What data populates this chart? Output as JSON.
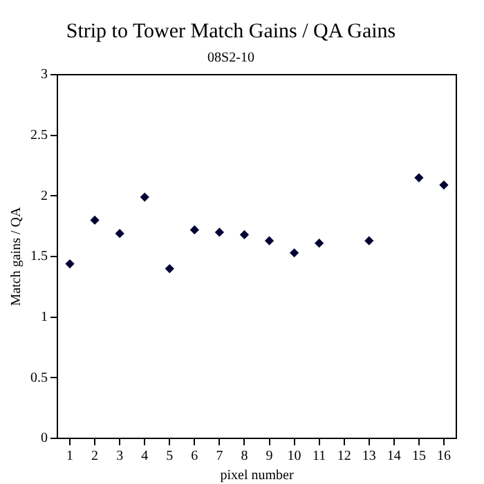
{
  "chart_data": {
    "type": "scatter",
    "title": "Strip to Tower Match Gains / QA Gains",
    "subtitle": "08S2-10",
    "xlabel": "pixel number",
    "ylabel": "Match gains / QA",
    "x": [
      1,
      2,
      3,
      4,
      5,
      6,
      7,
      8,
      9,
      10,
      11,
      13,
      15,
      16
    ],
    "series": [
      {
        "color": "#000033",
        "values": [
          1.44,
          1.8,
          1.69,
          1.99,
          1.4,
          1.72,
          1.7,
          1.68,
          1.63,
          1.53,
          1.61,
          1.63,
          2.15,
          2.09
        ]
      }
    ],
    "xlim": [
      0.5,
      16.5
    ],
    "xticks": [
      1,
      2,
      3,
      4,
      5,
      6,
      7,
      8,
      9,
      10,
      11,
      12,
      13,
      14,
      15,
      16
    ],
    "ylim": [
      0,
      3
    ],
    "yticks": [
      0,
      0.5,
      1,
      1.5,
      2,
      2.5,
      3
    ],
    "grid": false,
    "legend": false,
    "marker": "diamond"
  }
}
